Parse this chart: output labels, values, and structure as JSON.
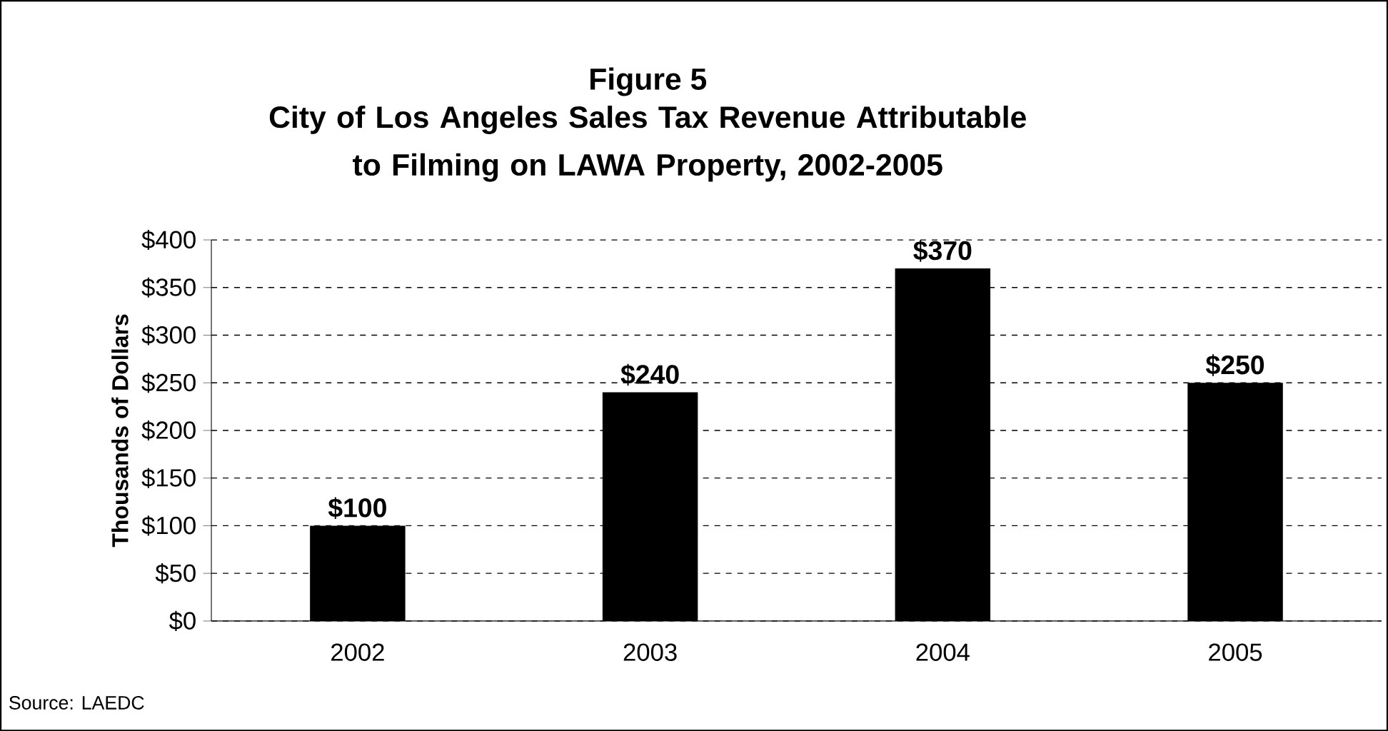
{
  "chart_data": {
    "type": "bar",
    "title": "Figure 5",
    "subtitle": "City of Los Angeles Sales Tax Revenue Attributable to Filming on LAWA Property, 2002-2005",
    "ylabel": "Thousands of Dollars",
    "annotations": [
      "Source: LAEDC"
    ],
    "categories": [
      "2002",
      "2003",
      "2004",
      "2005"
    ],
    "values": [
      100,
      240,
      370,
      250
    ],
    "value_labels": [
      "$100",
      "$240",
      "$370",
      "$250"
    ],
    "color": "#000000",
    "ylim": [
      0,
      400
    ],
    "yticks": [
      {
        "value": 0,
        "label": "$0"
      },
      {
        "value": 50,
        "label": "$50"
      },
      {
        "value": 100,
        "label": "$100"
      },
      {
        "value": 150,
        "label": "$150"
      },
      {
        "value": 200,
        "label": "$200"
      },
      {
        "value": 250,
        "label": "$250"
      },
      {
        "value": 300,
        "label": "$300"
      },
      {
        "value": 350,
        "label": "$350"
      },
      {
        "value": 400,
        "label": "$400"
      }
    ],
    "grid": "y"
  }
}
